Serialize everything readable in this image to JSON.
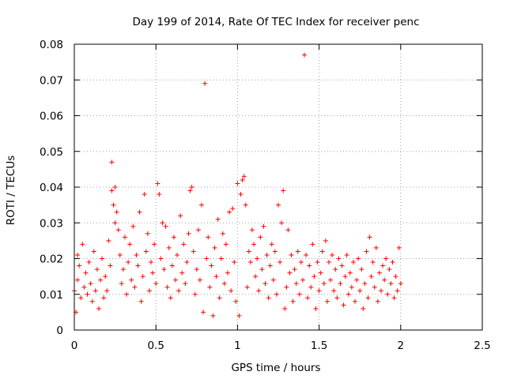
{
  "chart_data": {
    "type": "scatter",
    "title": "Day 199 of 2014, Rate Of TEC Index for receiver penc",
    "xlabel": "GPS time / hours",
    "ylabel": "ROTI / TECUs",
    "xlim": [
      0,
      2.5
    ],
    "ylim": [
      0,
      0.08
    ],
    "xticks": [
      0,
      0.5,
      1,
      1.5,
      2,
      2.5
    ],
    "xtick_labels": [
      "0",
      "0.5",
      "1",
      "1.5",
      "2",
      "2.5"
    ],
    "yticks": [
      0,
      0.01,
      0.02,
      0.03,
      0.04,
      0.05,
      0.06,
      0.07,
      0.08
    ],
    "ytick_labels": [
      "0",
      "0.01",
      "0.02",
      "0.03",
      "0.04",
      "0.05",
      "0.06",
      "0.07",
      "0.08"
    ],
    "grid": true,
    "marker": "+",
    "marker_color": "#ff0000",
    "grid_color": "#a0a0a0",
    "series": [
      {
        "name": "penc",
        "points": [
          [
            0.0,
            0.011
          ],
          [
            0.01,
            0.005
          ],
          [
            0.02,
            0.014
          ],
          [
            0.02,
            0.021
          ],
          [
            0.03,
            0.018
          ],
          [
            0.04,
            0.009
          ],
          [
            0.05,
            0.024
          ],
          [
            0.06,
            0.012
          ],
          [
            0.07,
            0.016
          ],
          [
            0.08,
            0.01
          ],
          [
            0.09,
            0.019
          ],
          [
            0.1,
            0.013
          ],
          [
            0.11,
            0.008
          ],
          [
            0.12,
            0.022
          ],
          [
            0.13,
            0.011
          ],
          [
            0.14,
            0.017
          ],
          [
            0.15,
            0.006
          ],
          [
            0.16,
            0.014
          ],
          [
            0.17,
            0.02
          ],
          [
            0.18,
            0.009
          ],
          [
            0.19,
            0.015
          ],
          [
            0.2,
            0.011
          ],
          [
            0.21,
            0.025
          ],
          [
            0.22,
            0.018
          ],
          [
            0.23,
            0.047
          ],
          [
            0.23,
            0.039
          ],
          [
            0.24,
            0.035
          ],
          [
            0.25,
            0.03
          ],
          [
            0.25,
            0.04
          ],
          [
            0.26,
            0.033
          ],
          [
            0.27,
            0.028
          ],
          [
            0.28,
            0.021
          ],
          [
            0.29,
            0.013
          ],
          [
            0.3,
            0.017
          ],
          [
            0.31,
            0.026
          ],
          [
            0.32,
            0.01
          ],
          [
            0.33,
            0.019
          ],
          [
            0.34,
            0.024
          ],
          [
            0.35,
            0.014
          ],
          [
            0.36,
            0.029
          ],
          [
            0.37,
            0.012
          ],
          [
            0.38,
            0.021
          ],
          [
            0.39,
            0.018
          ],
          [
            0.4,
            0.033
          ],
          [
            0.41,
            0.008
          ],
          [
            0.42,
            0.015
          ],
          [
            0.43,
            0.038
          ],
          [
            0.44,
            0.022
          ],
          [
            0.45,
            0.027
          ],
          [
            0.46,
            0.011
          ],
          [
            0.47,
            0.019
          ],
          [
            0.48,
            0.016
          ],
          [
            0.49,
            0.024
          ],
          [
            0.5,
            0.013
          ],
          [
            0.51,
            0.041
          ],
          [
            0.52,
            0.038
          ],
          [
            0.53,
            0.02
          ],
          [
            0.54,
            0.03
          ],
          [
            0.55,
            0.017
          ],
          [
            0.56,
            0.029
          ],
          [
            0.57,
            0.012
          ],
          [
            0.58,
            0.023
          ],
          [
            0.59,
            0.009
          ],
          [
            0.6,
            0.018
          ],
          [
            0.61,
            0.026
          ],
          [
            0.62,
            0.014
          ],
          [
            0.63,
            0.021
          ],
          [
            0.64,
            0.011
          ],
          [
            0.65,
            0.032
          ],
          [
            0.66,
            0.016
          ],
          [
            0.67,
            0.024
          ],
          [
            0.68,
            0.013
          ],
          [
            0.69,
            0.019
          ],
          [
            0.7,
            0.027
          ],
          [
            0.71,
            0.039
          ],
          [
            0.72,
            0.04
          ],
          [
            0.73,
            0.022
          ],
          [
            0.74,
            0.01
          ],
          [
            0.75,
            0.017
          ],
          [
            0.76,
            0.028
          ],
          [
            0.77,
            0.014
          ],
          [
            0.78,
            0.035
          ],
          [
            0.79,
            0.005
          ],
          [
            0.8,
            0.069
          ],
          [
            0.81,
            0.02
          ],
          [
            0.82,
            0.026
          ],
          [
            0.83,
            0.012
          ],
          [
            0.84,
            0.018
          ],
          [
            0.85,
            0.004
          ],
          [
            0.86,
            0.023
          ],
          [
            0.87,
            0.015
          ],
          [
            0.88,
            0.031
          ],
          [
            0.89,
            0.009
          ],
          [
            0.9,
            0.02
          ],
          [
            0.91,
            0.027
          ],
          [
            0.92,
            0.013
          ],
          [
            0.93,
            0.024
          ],
          [
            0.94,
            0.016
          ],
          [
            0.95,
            0.033
          ],
          [
            0.96,
            0.011
          ],
          [
            0.97,
            0.034
          ],
          [
            0.98,
            0.019
          ],
          [
            0.99,
            0.008
          ],
          [
            1.0,
            0.041
          ],
          [
            1.01,
            0.004
          ],
          [
            1.02,
            0.038
          ],
          [
            1.03,
            0.042
          ],
          [
            1.04,
            0.043
          ],
          [
            1.05,
            0.035
          ],
          [
            1.06,
            0.012
          ],
          [
            1.07,
            0.022
          ],
          [
            1.08,
            0.019
          ],
          [
            1.09,
            0.028
          ],
          [
            1.1,
            0.024
          ],
          [
            1.11,
            0.015
          ],
          [
            1.12,
            0.02
          ],
          [
            1.13,
            0.011
          ],
          [
            1.14,
            0.026
          ],
          [
            1.15,
            0.017
          ],
          [
            1.16,
            0.029
          ],
          [
            1.17,
            0.013
          ],
          [
            1.18,
            0.021
          ],
          [
            1.19,
            0.009
          ],
          [
            1.2,
            0.018
          ],
          [
            1.21,
            0.024
          ],
          [
            1.22,
            0.014
          ],
          [
            1.23,
            0.022
          ],
          [
            1.24,
            0.01
          ],
          [
            1.25,
            0.035
          ],
          [
            1.26,
            0.019
          ],
          [
            1.27,
            0.03
          ],
          [
            1.28,
            0.039
          ],
          [
            1.29,
            0.006
          ],
          [
            1.3,
            0.012
          ],
          [
            1.31,
            0.028
          ],
          [
            1.32,
            0.016
          ],
          [
            1.33,
            0.021
          ],
          [
            1.34,
            0.008
          ],
          [
            1.35,
            0.017
          ],
          [
            1.36,
            0.013
          ],
          [
            1.37,
            0.022
          ],
          [
            1.38,
            0.01
          ],
          [
            1.39,
            0.019
          ],
          [
            1.4,
            0.014
          ],
          [
            1.41,
            0.077
          ],
          [
            1.42,
            0.021
          ],
          [
            1.43,
            0.009
          ],
          [
            1.44,
            0.018
          ],
          [
            1.45,
            0.012
          ],
          [
            1.46,
            0.024
          ],
          [
            1.47,
            0.015
          ],
          [
            1.48,
            0.006
          ],
          [
            1.49,
            0.019
          ],
          [
            1.5,
            0.011
          ],
          [
            1.51,
            0.016
          ],
          [
            1.52,
            0.022
          ],
          [
            1.53,
            0.013
          ],
          [
            1.54,
            0.025
          ],
          [
            1.55,
            0.008
          ],
          [
            1.56,
            0.019
          ],
          [
            1.57,
            0.014
          ],
          [
            1.58,
            0.021
          ],
          [
            1.59,
            0.011
          ],
          [
            1.6,
            0.017
          ],
          [
            1.61,
            0.009
          ],
          [
            1.62,
            0.02
          ],
          [
            1.63,
            0.013
          ],
          [
            1.64,
            0.018
          ],
          [
            1.65,
            0.007
          ],
          [
            1.66,
            0.015
          ],
          [
            1.67,
            0.021
          ],
          [
            1.68,
            0.01
          ],
          [
            1.69,
            0.016
          ],
          [
            1.7,
            0.012
          ],
          [
            1.71,
            0.019
          ],
          [
            1.72,
            0.008
          ],
          [
            1.73,
            0.014
          ],
          [
            1.74,
            0.02
          ],
          [
            1.75,
            0.011
          ],
          [
            1.76,
            0.017
          ],
          [
            1.77,
            0.006
          ],
          [
            1.78,
            0.013
          ],
          [
            1.79,
            0.022
          ],
          [
            1.8,
            0.009
          ],
          [
            1.81,
            0.026
          ],
          [
            1.82,
            0.015
          ],
          [
            1.83,
            0.019
          ],
          [
            1.84,
            0.012
          ],
          [
            1.85,
            0.023
          ],
          [
            1.86,
            0.008
          ],
          [
            1.87,
            0.016
          ],
          [
            1.88,
            0.011
          ],
          [
            1.89,
            0.018
          ],
          [
            1.9,
            0.014
          ],
          [
            1.91,
            0.02
          ],
          [
            1.92,
            0.01
          ],
          [
            1.93,
            0.017
          ],
          [
            1.94,
            0.013
          ],
          [
            1.95,
            0.019
          ],
          [
            1.96,
            0.009
          ],
          [
            1.97,
            0.015
          ],
          [
            1.98,
            0.011
          ],
          [
            1.99,
            0.023
          ],
          [
            2.0,
            0.013
          ]
        ]
      }
    ]
  }
}
